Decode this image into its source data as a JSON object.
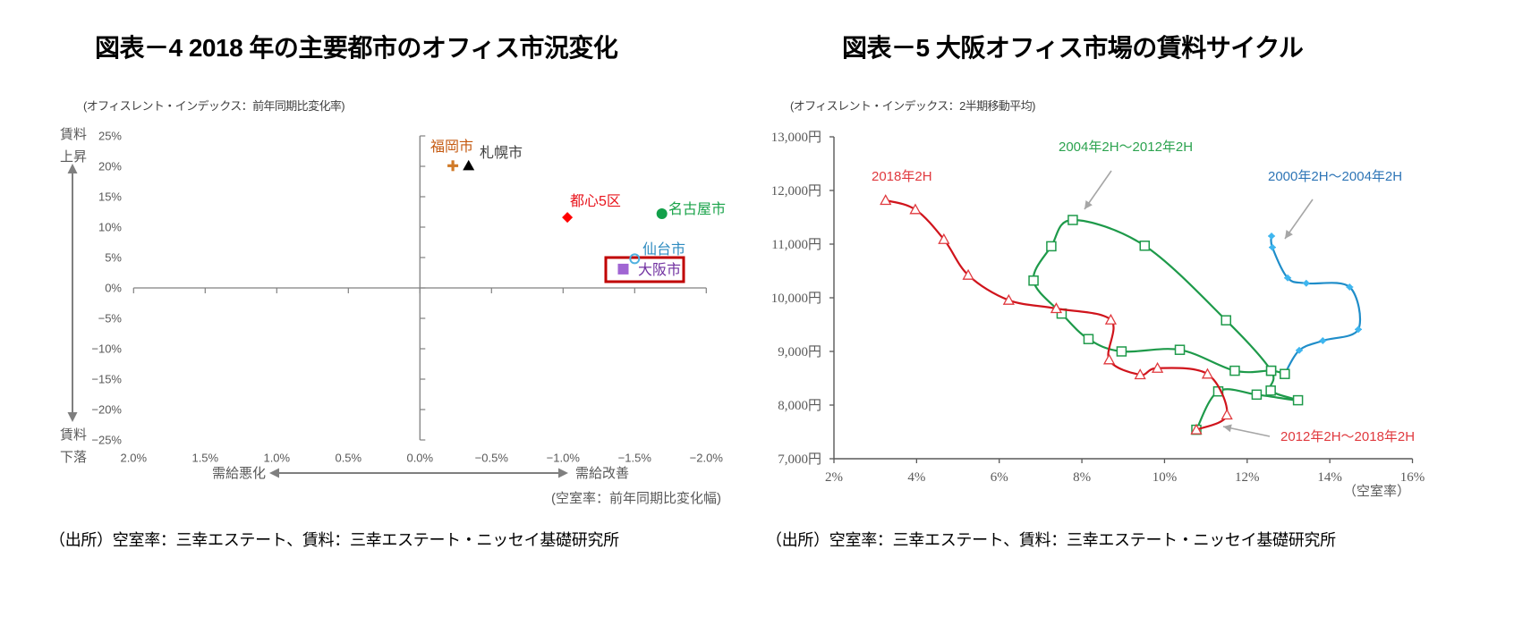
{
  "chart_data": [
    {
      "type": "scatter",
      "title": "図表－4  2018 年の主要都市のオフィス市況変化",
      "subtitle": "(オフィスレント・インデックス：前年同期比変化率)",
      "source": "（出所）空室率：三幸エステート、賃料：三幸エステート・ニッセイ基礎研究所",
      "xlabel": "(空室率：前年同期比変化幅)",
      "x_arrow_left_label": "需給悪化",
      "x_arrow_right_label": "需給改善",
      "y_arrow_top_label": [
        "賃料",
        "上昇"
      ],
      "y_arrow_bottom_label": [
        "賃料",
        "下落"
      ],
      "xlim": [
        2.0,
        -2.0
      ],
      "ylim": [
        -25,
        25
      ],
      "grid": false,
      "x_ticks": [
        2.0,
        1.5,
        1.0,
        0.5,
        0.0,
        -0.5,
        -1.0,
        -1.5,
        -2.0
      ],
      "x_tick_labels": [
        "2.0%",
        "1.5%",
        "1.0%",
        "0.5%",
        "0.0%",
        "−0.5%",
        "−1.0%",
        "−1.5%",
        "−2.0%"
      ],
      "y_ticks": [
        25,
        20,
        15,
        10,
        5,
        0,
        -5,
        -10,
        -15,
        -20,
        -25
      ],
      "y_tick_labels": [
        "25%",
        "20%",
        "15%",
        "10%",
        "5%",
        "0%",
        "−5%",
        "−10%",
        "−15%",
        "−20%",
        "−25%"
      ],
      "points": [
        {
          "name": "福岡市",
          "x": -0.23,
          "y": 20.1,
          "marker": "plus",
          "color": "#d07a28",
          "label_color": "#c55a11"
        },
        {
          "name": "札幌市",
          "x": -0.34,
          "y": 20.1,
          "marker": "triangle",
          "color": "#000000",
          "label_color": "#404040"
        },
        {
          "name": "都心5区",
          "x": -1.03,
          "y": 11.6,
          "marker": "diamond",
          "color": "#ff0000",
          "label_color": "#e8141c"
        },
        {
          "name": "名古屋市",
          "x": -1.69,
          "y": 12.2,
          "marker": "circle",
          "color": "#12a04a",
          "label_color": "#1aa34a"
        },
        {
          "name": "仙台市",
          "x": -1.5,
          "y": 4.8,
          "marker": "open-circle",
          "color": "#4fb0e0",
          "label_color": "#2e8bc0"
        },
        {
          "name": "大阪市",
          "x": -1.42,
          "y": 3.1,
          "marker": "square",
          "color": "#a066d3",
          "label_color": "#7030a0",
          "highlighted": true
        }
      ],
      "highlight_color": "#c00000"
    },
    {
      "type": "line",
      "title": "図表－5  大阪オフィス市場の賃料サイクル",
      "subtitle": "(オフィスレント・インデックス：2半期移動平均)",
      "source": "（出所）空室率：三幸エステート、賃料：三幸エステート・ニッセイ基礎研究所",
      "xlabel": "（空室率）",
      "ylabel": "",
      "xlim": [
        2,
        16
      ],
      "ylim": [
        7000,
        13000
      ],
      "grid": false,
      "x_ticks": [
        2,
        4,
        6,
        8,
        10,
        12,
        14,
        16
      ],
      "x_tick_labels": [
        "2%",
        "4%",
        "6%",
        "8%",
        "10%",
        "12%",
        "14%",
        "16%"
      ],
      "y_ticks": [
        13000,
        12000,
        11000,
        10000,
        9000,
        8000,
        7000
      ],
      "y_tick_labels": [
        "13,000円",
        "12,000円",
        "11,000円",
        "10,000円",
        "9,000円",
        "8,000円",
        "7,000円"
      ],
      "series": [
        {
          "name": "2000年2H～2004年2H",
          "color": "#1f8dc9",
          "marker_color": "#3fb6ef",
          "marker": "star",
          "x": [
            12.59,
            12.61,
            12.98,
            13.43,
            14.48,
            14.69,
            13.83,
            13.26,
            12.91
          ],
          "y": [
            11150,
            10940,
            10370,
            10270,
            10200,
            9410,
            9200,
            9020,
            8580
          ]
        },
        {
          "name": "2004年2H～2012年2H",
          "color": "#1e9a4a",
          "marker": "open-square",
          "x": [
            12.91,
            12.58,
            11.7,
            10.37,
            8.96,
            8.16,
            7.51,
            6.83,
            7.26,
            7.78,
            9.52,
            11.49,
            12.58,
            12.57,
            13.23,
            12.23,
            11.3,
            10.77
          ],
          "y": [
            8580,
            8640,
            8640,
            9030,
            9000,
            9230,
            9705,
            10320,
            10960,
            11450,
            10970,
            9580,
            8640,
            8270,
            8090,
            8195,
            8255,
            7540
          ]
        },
        {
          "name": "2012年2H～2018年2H",
          "color": "#d0141c",
          "marker": "open-triangle",
          "x": [
            10.77,
            11.51,
            11.04,
            9.83,
            9.41,
            8.66,
            8.7,
            7.38,
            6.23,
            5.25,
            4.66,
            3.97,
            3.25
          ],
          "y": [
            7540,
            7817,
            8578,
            8688,
            8567,
            8845,
            9588,
            9800,
            9955,
            10422,
            11088,
            11645,
            11817
          ]
        }
      ],
      "annotations": [
        {
          "text": "2018年2H",
          "color": "#e0393e"
        }
      ],
      "label_colors": {
        "blue": "#2e75b6",
        "green": "#2ca34f",
        "red": "#e0393e",
        "arrow": "#a6a6a6"
      }
    }
  ]
}
